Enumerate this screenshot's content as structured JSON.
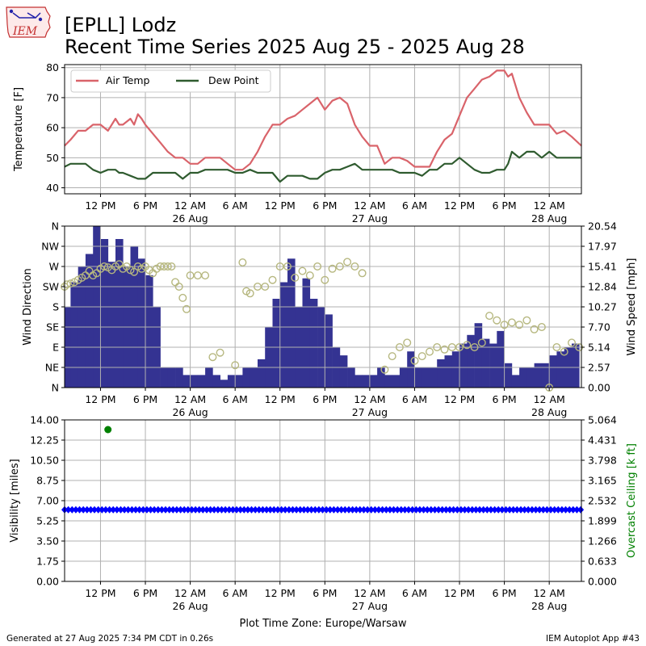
{
  "title_line1": "[EPLL] Lodz",
  "title_line2": "Recent Time Series 2025 Aug 25 - 2025 Aug 28",
  "logo_text": "IEM",
  "footer_left": "Generated at 27 Aug 2025 7:34 PM CDT in 0.26s",
  "footer_right": "IEM Autoplot App #43",
  "xaxis_title": "Plot Time Zone: Europe/Warsaw",
  "colors": {
    "air_temp": "#d9636a",
    "dew_point": "#2f5b2f",
    "wind_speed_bar": "#343392",
    "wind_dir_marker": "#b6b77f",
    "visibility": "#0000ff",
    "ceiling": "#008000"
  },
  "chart_data": [
    {
      "type": "line",
      "ylabel": "Temperature [F]",
      "ylim": [
        38,
        81
      ],
      "yticks": [
        "40",
        "50",
        "60",
        "70",
        "80"
      ],
      "xticks": [
        {
          "h": 12,
          "line1": "12 PM",
          "line2": ""
        },
        {
          "h": 18,
          "line1": "6 PM",
          "line2": ""
        },
        {
          "h": 24,
          "line1": "12 AM",
          "line2": "26 Aug"
        },
        {
          "h": 30,
          "line1": "6 AM",
          "line2": ""
        },
        {
          "h": 36,
          "line1": "12 PM",
          "line2": ""
        },
        {
          "h": 42,
          "line1": "6 PM",
          "line2": ""
        },
        {
          "h": 48,
          "line1": "12 AM",
          "line2": "27 Aug"
        },
        {
          "h": 54,
          "line1": "6 AM",
          "line2": ""
        },
        {
          "h": 60,
          "line1": "12 PM",
          "line2": ""
        },
        {
          "h": 66,
          "line1": "6 PM",
          "line2": ""
        },
        {
          "h": 72,
          "line1": "12 AM",
          "line2": "28 Aug"
        }
      ],
      "x_unit": "hours after 2025-08-25 00:00 Europe/Warsaw",
      "xlim": [
        7.2,
        76.3
      ],
      "legend": {
        "placement": "top-left",
        "entries": [
          "Air Temp",
          "Dew Point"
        ]
      },
      "series": [
        {
          "name": "Air Temp",
          "x": [
            7.2,
            8,
            9,
            10,
            11,
            12,
            13,
            14,
            14.5,
            15,
            16,
            16.5,
            17,
            17.5,
            18,
            19,
            20,
            21,
            22,
            23,
            24,
            25,
            26,
            27,
            28,
            29,
            30,
            31,
            32,
            33,
            34,
            35,
            36,
            37,
            38,
            39,
            40,
            41,
            42,
            43,
            44,
            45,
            46,
            47,
            48,
            49,
            50,
            51,
            52,
            53,
            54,
            55,
            56,
            57,
            58,
            59,
            60,
            61,
            62,
            63,
            64,
            65,
            66,
            66.5,
            67,
            68,
            69,
            70,
            71,
            72,
            73,
            74,
            75,
            76.3
          ],
          "y": [
            54,
            56,
            59,
            59,
            61,
            61,
            59,
            63,
            61,
            61,
            63,
            61,
            64.5,
            63,
            61,
            58,
            55,
            52,
            50,
            50,
            48,
            48,
            50,
            50,
            50,
            48,
            46,
            46,
            48,
            52,
            57,
            61,
            61,
            63,
            64,
            66,
            68,
            70,
            66,
            69,
            70,
            68,
            61,
            57,
            54,
            54,
            48,
            50,
            50,
            49,
            47,
            47,
            47,
            52,
            56,
            58,
            64,
            70,
            73,
            76,
            77,
            79,
            79,
            77,
            78,
            70,
            65,
            61,
            61,
            61,
            58,
            59,
            57,
            54
          ]
        },
        {
          "name": "Dew Point",
          "x": [
            7.2,
            8,
            9,
            10,
            11,
            12,
            13,
            14,
            14.5,
            15,
            16,
            17,
            18,
            19,
            20,
            21,
            22,
            23,
            24,
            25,
            26,
            27,
            28,
            29,
            30,
            31,
            32,
            33,
            34,
            35,
            36,
            37,
            38,
            39,
            40,
            41,
            42,
            43,
            44,
            45,
            46,
            47,
            48,
            49,
            50,
            51,
            52,
            53,
            54,
            55,
            56,
            57,
            58,
            59,
            60,
            61,
            62,
            63,
            64,
            65,
            66,
            66.5,
            67,
            68,
            69,
            70,
            71,
            72,
            73,
            74,
            75,
            76.3
          ],
          "y": [
            47,
            48,
            48,
            48,
            46,
            45,
            46,
            46,
            45,
            45,
            44,
            43,
            43,
            45,
            45,
            45,
            45,
            43,
            45,
            45,
            46,
            46,
            46,
            46,
            45,
            45,
            46,
            45,
            45,
            45,
            42,
            44,
            44,
            44,
            43,
            43,
            45,
            46,
            46,
            47,
            48,
            46,
            46,
            46,
            46,
            46,
            45,
            45,
            45,
            44,
            46,
            46,
            48,
            48,
            50,
            48,
            46,
            45,
            45,
            46,
            46,
            48,
            52,
            50,
            52,
            52,
            50,
            52,
            50,
            50,
            50,
            50
          ]
        }
      ]
    },
    {
      "type": "bar",
      "ylabel": "Wind Direction",
      "y2label": "Wind Speed [mph]",
      "direction_ticks": [
        "N",
        "NE",
        "E",
        "SE",
        "S",
        "SW",
        "W",
        "NW",
        "N"
      ],
      "speed_ticks": [
        "0.00",
        "2.57",
        "5.14",
        "7.70",
        "10.27",
        "12.84",
        "15.41",
        "17.97",
        "20.54"
      ],
      "speed_lim": [
        0,
        20.54
      ],
      "direction_lim": [
        0,
        360
      ],
      "series": [
        {
          "name": "Wind Speed",
          "x": [
            7.2,
            8,
            9,
            10,
            11,
            12,
            13,
            14,
            15,
            16,
            17,
            18,
            19,
            20,
            21,
            22,
            23,
            24,
            25,
            26,
            27,
            28,
            29,
            30,
            31,
            32,
            33,
            34,
            35,
            36,
            37,
            38,
            39,
            40,
            41,
            42,
            43,
            44,
            45,
            46,
            47,
            48,
            49,
            50,
            51,
            52,
            53,
            54,
            55,
            56,
            57,
            58,
            59,
            60,
            61,
            62,
            63,
            64,
            65,
            66,
            67,
            68,
            69,
            70,
            71,
            72,
            73,
            74,
            75
          ],
          "y": [
            10.3,
            13.4,
            15.4,
            17.0,
            20.5,
            18.9,
            16.0,
            18.9,
            15.4,
            18.0,
            16.4,
            14.3,
            10.3,
            2.6,
            2.6,
            2.6,
            1.6,
            1.6,
            1.6,
            2.6,
            1.6,
            1.0,
            1.6,
            1.6,
            2.6,
            2.6,
            3.6,
            7.7,
            11.3,
            13.4,
            16.4,
            10.3,
            13.9,
            11.3,
            10.3,
            9.3,
            5.1,
            4.1,
            2.6,
            1.6,
            1.6,
            1.6,
            2.6,
            1.6,
            1.6,
            2.6,
            4.6,
            2.6,
            2.6,
            2.6,
            3.6,
            4.1,
            4.6,
            5.6,
            6.7,
            8.2,
            6.2,
            5.6,
            7.2,
            3.1,
            1.6,
            2.6,
            2.6,
            3.1,
            3.1,
            4.1,
            4.6,
            5.1,
            5.6
          ]
        },
        {
          "name": "Wind Direction",
          "x": [
            7.2,
            7.5,
            8,
            8.5,
            9,
            9.5,
            10,
            10.5,
            11,
            11.5,
            12,
            12.5,
            13,
            13.5,
            14,
            14.5,
            15,
            15.5,
            16,
            16.5,
            17,
            17.5,
            18,
            18.5,
            19,
            19.5,
            20,
            20.5,
            21,
            21.5,
            22,
            22.5,
            23,
            23.5,
            24,
            25,
            26,
            27,
            28,
            30,
            31,
            31.5,
            32,
            33,
            34,
            35,
            36,
            37,
            38,
            39,
            40,
            41,
            42,
            43,
            44,
            45,
            46,
            47,
            50,
            51,
            52,
            53,
            54,
            55,
            56,
            57,
            58,
            59,
            60,
            61,
            62,
            63,
            64,
            65,
            66,
            67,
            68,
            69,
            70,
            71,
            72,
            73,
            74,
            75,
            76
          ],
          "y": [
            225,
            230,
            232,
            235,
            240,
            245,
            250,
            260,
            250,
            255,
            265,
            270,
            268,
            262,
            270,
            275,
            265,
            270,
            262,
            258,
            270,
            265,
            270,
            262,
            255,
            265,
            270,
            270,
            270,
            270,
            235,
            225,
            200,
            175,
            250,
            250,
            250,
            68,
            78,
            50,
            279,
            215,
            210,
            225,
            225,
            240,
            270,
            270,
            245,
            260,
            250,
            270,
            240,
            265,
            270,
            280,
            270,
            255,
            40,
            70,
            90,
            100,
            60,
            70,
            80,
            90,
            85,
            90,
            90,
            95,
            90,
            100,
            160,
            150,
            140,
            145,
            140,
            150,
            130,
            135,
            0,
            90,
            80,
            100,
            90
          ]
        }
      ]
    },
    {
      "type": "scatter",
      "ylabel": "Visibility [miles]",
      "y2label": "Overcast Ceiling [k ft]",
      "visibility_ticks": [
        "0.00",
        "1.75",
        "3.50",
        "5.25",
        "7.00",
        "8.75",
        "10.50",
        "12.25",
        "14.00"
      ],
      "visibility_lim": [
        0,
        14
      ],
      "ceiling_ticks": [
        "0.000",
        "0.633",
        "1.266",
        "1.899",
        "2.532",
        "3.165",
        "3.798",
        "4.431",
        "5.064"
      ],
      "ceiling_lim": [
        0,
        5.064
      ],
      "visibility": {
        "x_start": 7.2,
        "x_end": 76.3,
        "step": 0.5,
        "value": 6.21
      },
      "ceiling": {
        "x": [
          13
        ],
        "y": [
          4.76
        ]
      }
    }
  ]
}
